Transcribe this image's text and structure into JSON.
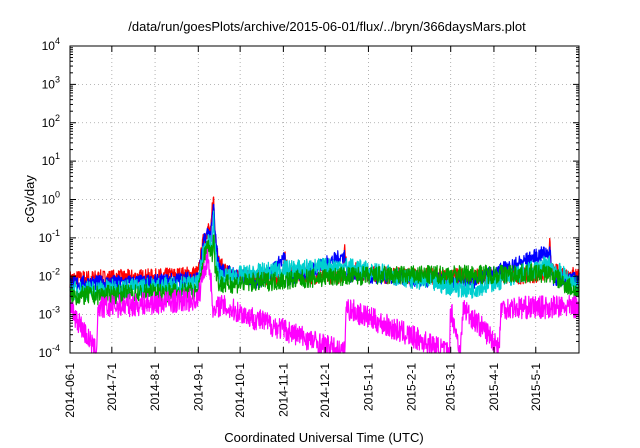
{
  "chart_data": {
    "type": "line",
    "title": "/data/run/goesPlots/archive/2015-06-01/flux/../bryn/366daysMars.plot",
    "xlabel": "Coordinated Universal Time (UTC)",
    "ylabel": "cGy/day",
    "y_scale": "log",
    "ylim": [
      0.0001,
      10000
    ],
    "xlim": [
      "2014-06-01",
      "2015-06-01"
    ],
    "x_ticks": [
      "2014-06-1",
      "2014-7-1",
      "2014-8-1",
      "2014-9-1",
      "2014-10-1",
      "2014-11-1",
      "2014-12-1",
      "2015-1-1",
      "2015-2-1",
      "2015-3-1",
      "2015-4-1",
      "2015-5-1"
    ],
    "y_ticks": [
      {
        "base": "10",
        "exp": "-4"
      },
      {
        "base": "10",
        "exp": "-3"
      },
      {
        "base": "10",
        "exp": "-2"
      },
      {
        "base": "10",
        "exp": "-1"
      },
      {
        "base": "10",
        "exp": "0"
      },
      {
        "base": "10",
        "exp": "1"
      },
      {
        "base": "10",
        "exp": "2"
      },
      {
        "base": "10",
        "exp": "3"
      },
      {
        "base": "10",
        "exp": "4"
      }
    ],
    "grid": true,
    "legend": "none",
    "series": [
      {
        "color": "#ff0000",
        "baseline": 0.0085,
        "noise": 0.22,
        "points": [
          [
            "2014-06-01",
            0.0085
          ],
          [
            "2014-07-01",
            0.009
          ],
          [
            "2014-08-01",
            0.0095
          ],
          [
            "2014-08-25",
            0.011
          ],
          [
            "2014-09-01",
            0.012
          ],
          [
            "2014-09-05",
            0.1
          ],
          [
            "2014-09-08",
            0.18
          ],
          [
            "2014-09-10",
            0.12
          ],
          [
            "2014-09-11",
            0.6
          ],
          [
            "2014-09-12",
            1.0
          ],
          [
            "2014-09-13",
            0.15
          ],
          [
            "2014-09-16",
            0.02
          ],
          [
            "2014-09-25",
            0.01
          ],
          [
            "2014-10-15",
            0.0095
          ],
          [
            "2014-11-01",
            0.01
          ],
          [
            "2014-11-02",
            0.045
          ],
          [
            "2014-11-04",
            0.011
          ],
          [
            "2014-12-01",
            0.01
          ],
          [
            "2014-12-14",
            0.011
          ],
          [
            "2014-12-15",
            0.045
          ],
          [
            "2014-12-17",
            0.015
          ],
          [
            "2015-01-15",
            0.0105
          ],
          [
            "2015-02-15",
            0.0098
          ],
          [
            "2015-03-15",
            0.0095
          ],
          [
            "2015-04-15",
            0.01
          ],
          [
            "2015-05-10",
            0.012
          ],
          [
            "2015-05-11",
            0.065
          ],
          [
            "2015-05-13",
            0.013
          ],
          [
            "2015-06-01",
            0.0105
          ]
        ]
      },
      {
        "color": "#0000ff",
        "baseline": 0.0065,
        "noise": 0.2,
        "points": [
          [
            "2014-06-01",
            0.0065
          ],
          [
            "2014-08-01",
            0.007
          ],
          [
            "2014-09-01",
            0.009
          ],
          [
            "2014-09-05",
            0.08
          ],
          [
            "2014-09-08",
            0.15
          ],
          [
            "2014-09-10",
            0.1
          ],
          [
            "2014-09-12",
            0.8
          ],
          [
            "2014-09-13",
            0.12
          ],
          [
            "2014-09-16",
            0.015
          ],
          [
            "2014-10-15",
            0.0072
          ],
          [
            "2014-11-02",
            0.03
          ],
          [
            "2014-11-04",
            0.008
          ],
          [
            "2014-12-15",
            0.035
          ],
          [
            "2014-12-17",
            0.011
          ],
          [
            "2015-03-15",
            0.007
          ],
          [
            "2015-05-11",
            0.045
          ],
          [
            "2015-05-13",
            0.009
          ],
          [
            "2015-06-01",
            0.008
          ]
        ]
      },
      {
        "color": "#00cfcf",
        "baseline": 0.0042,
        "noise": 0.25,
        "points": [
          [
            "2014-06-01",
            0.0042
          ],
          [
            "2014-09-01",
            0.006
          ],
          [
            "2014-09-05",
            0.05
          ],
          [
            "2014-09-08",
            0.1
          ],
          [
            "2014-09-11",
            0.06
          ],
          [
            "2014-09-12",
            0.3
          ],
          [
            "2014-09-13",
            0.05
          ],
          [
            "2014-09-16",
            0.009
          ],
          [
            "2014-11-02",
            0.015
          ],
          [
            "2014-12-15",
            0.018
          ],
          [
            "2015-03-15",
            0.0045
          ],
          [
            "2015-05-11",
            0.02
          ],
          [
            "2015-06-01",
            0.005
          ]
        ]
      },
      {
        "color": "#00a000",
        "baseline": 0.003,
        "noise": 0.25,
        "points": [
          [
            "2014-06-01",
            0.003
          ],
          [
            "2014-09-01",
            0.004
          ],
          [
            "2014-09-05",
            0.03
          ],
          [
            "2014-09-08",
            0.06
          ],
          [
            "2014-09-11",
            0.04
          ],
          [
            "2014-09-12",
            0.15
          ],
          [
            "2014-09-13",
            0.02
          ],
          [
            "2014-09-16",
            0.006
          ],
          [
            "2014-12-15",
            0.01
          ],
          [
            "2015-05-11",
            0.012
          ],
          [
            "2015-06-01",
            0.0035
          ]
        ]
      },
      {
        "color": "#ff00ff",
        "baseline": 0.0016,
        "noise": 0.3,
        "points": [
          [
            "2014-06-01",
            0.0016
          ],
          [
            "2014-06-20",
            0.0001
          ],
          [
            "2014-06-21",
            0.0015
          ],
          [
            "2014-09-01",
            0.0025
          ],
          [
            "2014-09-05",
            0.015
          ],
          [
            "2014-09-08",
            0.03
          ],
          [
            "2014-09-10",
            0.008
          ],
          [
            "2014-09-12",
            0.001
          ],
          [
            "2014-09-16",
            0.0018
          ],
          [
            "2014-12-15",
            0.0001
          ],
          [
            "2014-12-16",
            0.0015
          ],
          [
            "2015-02-28",
            0.0001
          ],
          [
            "2015-03-01",
            0.0015
          ],
          [
            "2015-03-08",
            0.0001
          ],
          [
            "2015-03-10",
            0.0015
          ],
          [
            "2015-04-05",
            0.00015
          ],
          [
            "2015-04-06",
            0.0015
          ],
          [
            "2015-06-01",
            0.0016
          ]
        ]
      }
    ]
  }
}
